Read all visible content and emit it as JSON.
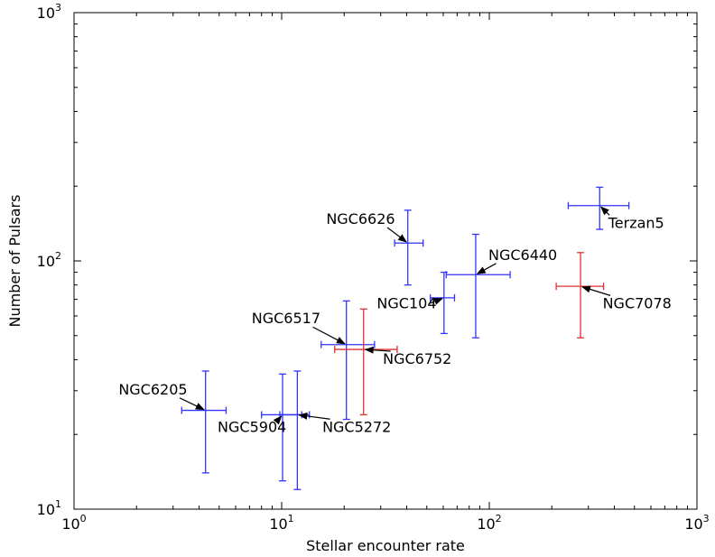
{
  "chart_data": {
    "type": "scatter",
    "xlabel": "Stellar encounter rate",
    "ylabel": "Number of Pulsars",
    "x_scale": "log",
    "y_scale": "log",
    "xlim": [
      1,
      1000
    ],
    "ylim": [
      10,
      1000
    ],
    "grid": false,
    "x_ticks": [
      {
        "value": 1,
        "base": "10",
        "exp": "0"
      },
      {
        "value": 10,
        "base": "10",
        "exp": "1"
      },
      {
        "value": 100,
        "base": "10",
        "exp": "2"
      },
      {
        "value": 1000,
        "base": "10",
        "exp": "3"
      }
    ],
    "y_ticks": [
      {
        "value": 10,
        "base": "10",
        "exp": "1"
      },
      {
        "value": 100,
        "base": "10",
        "exp": "2"
      },
      {
        "value": 1000,
        "base": "10",
        "exp": "3"
      }
    ],
    "colors": {
      "blue": "#3333ff",
      "red": "#e03030"
    },
    "points": [
      {
        "name": "NGC6205",
        "color": "blue",
        "x": 4.3,
        "x_err": [
          3.3,
          5.4
        ],
        "y": 25,
        "y_err": [
          14,
          36
        ],
        "label_x": 2.4,
        "label_y": 29,
        "label_anchor": "middle"
      },
      {
        "name": "NGC5904",
        "color": "blue",
        "x": 10.1,
        "x_err": [
          8.0,
          12.5
        ],
        "y": 24,
        "y_err": [
          13,
          35
        ],
        "label_x": 7.2,
        "label_y": 20.5,
        "label_anchor": "middle"
      },
      {
        "name": "NGC5272",
        "color": "blue",
        "x": 11.9,
        "x_err": [
          9.8,
          13.6
        ],
        "y": 24,
        "y_err": [
          12,
          36
        ],
        "label_x": 23,
        "label_y": 20.5,
        "label_anchor": "middle"
      },
      {
        "name": "NGC6517",
        "color": "blue",
        "x": 20.5,
        "x_err": [
          15.5,
          28
        ],
        "y": 46,
        "y_err": [
          23,
          69
        ],
        "label_x": 10.5,
        "label_y": 56,
        "label_anchor": "middle"
      },
      {
        "name": "NGC6752",
        "color": "red",
        "x": 24.8,
        "x_err": [
          18,
          36
        ],
        "y": 44,
        "y_err": [
          24,
          64
        ],
        "label_x": 45,
        "label_y": 38.5,
        "label_anchor": "middle"
      },
      {
        "name": "NGC6626",
        "color": "blue",
        "x": 40.5,
        "x_err": [
          35,
          48
        ],
        "y": 118,
        "y_err": [
          80,
          160
        ],
        "label_x": 24,
        "label_y": 141,
        "label_anchor": "middle"
      },
      {
        "name": "NGC104",
        "color": "blue",
        "x": 60.5,
        "x_err": [
          52,
          68
        ],
        "y": 71,
        "y_err": [
          51,
          90
        ],
        "label_x": 40,
        "label_y": 64.5,
        "label_anchor": "middle"
      },
      {
        "name": "NGC6440",
        "color": "blue",
        "x": 86,
        "x_err": [
          62,
          126
        ],
        "y": 88,
        "y_err": [
          49,
          128
        ],
        "label_x": 145,
        "label_y": 101,
        "label_anchor": "middle"
      },
      {
        "name": "NGC7078",
        "color": "red",
        "x": 275,
        "x_err": [
          210,
          355
        ],
        "y": 79,
        "y_err": [
          49,
          108
        ],
        "label_x": 515,
        "label_y": 64.5,
        "label_anchor": "middle"
      },
      {
        "name": "Terzan5",
        "color": "blue",
        "x": 340,
        "x_err": [
          240,
          470
        ],
        "y": 167,
        "y_err": [
          134,
          198
        ],
        "label_x": 510,
        "label_y": 136,
        "label_anchor": "middle"
      }
    ]
  }
}
